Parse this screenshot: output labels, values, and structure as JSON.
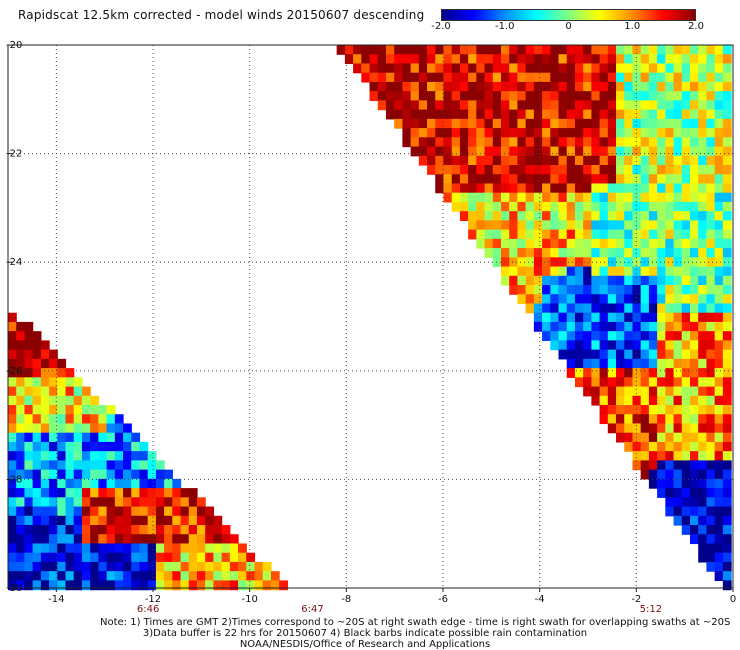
{
  "title": "Rapidscat 12.5km corrected - model winds 20150607 descending",
  "colorbar": {
    "ticks": [
      "-2.0",
      "-1.0",
      "0",
      "1.0",
      "2.0"
    ],
    "range": [
      -2.0,
      2.0
    ],
    "colors": [
      "#00008b",
      "#0000ff",
      "#0090ff",
      "#00ffff",
      "#7fff7f",
      "#ffff00",
      "#ff9000",
      "#ff0000",
      "#8b0000"
    ]
  },
  "chart_data": {
    "type": "heatmap",
    "title": "Rapidscat 12.5km corrected - model winds 20150607 descending",
    "xlabel": "",
    "ylabel": "",
    "xlim": [
      -15,
      0
    ],
    "ylim": [
      -30,
      -20
    ],
    "x_ticks": [
      "-14",
      "-12",
      "-10",
      "-8",
      "-6",
      "-4",
      "-2",
      "0"
    ],
    "y_ticks": [
      "-20",
      "-22",
      "-24",
      "-26",
      "-28",
      "-30"
    ],
    "grid": "dotted",
    "time_labels": [
      {
        "x": -12.1,
        "label": "6:46"
      },
      {
        "x": -8.7,
        "label": "6:47"
      },
      {
        "x": -1.7,
        "label": "5:12"
      }
    ],
    "value_range": [
      -2.0,
      2.0
    ],
    "swaths": [
      {
        "name": "",
        "corners": [
          [
            -8.2,
            -20.0
          ],
          [
            0,
            -20.0
          ],
          [
            0,
            -30.0
          ],
          [
            -0.2,
            -30.0
          ]
        ],
        "regions": [
          {
            "lon": [
              -8,
              -2.5
            ],
            "lat": [
              -22.8,
              -20
            ],
            "value": 1.7
          },
          {
            "lon": [
              -2.5,
              0
            ],
            "lat": [
              -22.5,
              -20
            ],
            "value": 0.2
          },
          {
            "lon": [
              -6,
              -3
            ],
            "lat": [
              -24,
              -22.8
            ],
            "value": 0.7
          },
          {
            "lon": [
              -3,
              0
            ],
            "lat": [
              -25,
              -22.5
            ],
            "value": 0.0
          },
          {
            "lon": [
              -4,
              -1.5
            ],
            "lat": [
              -26,
              -24.3
            ],
            "value": -1.2
          },
          {
            "lon": [
              -3.5,
              -1.5
            ],
            "lat": [
              -27.5,
              -26
            ],
            "value": 1.3
          },
          {
            "lon": [
              -1.5,
              0
            ],
            "lat": [
              -27.5,
              -25
            ],
            "value": 0.9
          },
          {
            "lon": [
              -1.5,
              0
            ],
            "lat": [
              -30,
              -27.8
            ],
            "value": -1.8
          }
        ]
      },
      {
        "name": "",
        "corners": [
          [
            -15,
            -24.8
          ],
          [
            -15,
            -30.0
          ],
          [
            -9.2,
            -30.0
          ]
        ],
        "regions": [
          {
            "lon": [
              -15,
              -13.5
            ],
            "lat": [
              -26.2,
              -24.8
            ],
            "value": 1.8
          },
          {
            "lon": [
              -15,
              -13
            ],
            "lat": [
              -27.2,
              -26.2
            ],
            "value": 0.6
          },
          {
            "lon": [
              -15,
              -11.5
            ],
            "lat": [
              -28.4,
              -27.2
            ],
            "value": -0.9
          },
          {
            "lon": [
              -13.5,
              -10
            ],
            "lat": [
              -29.2,
              -28.2
            ],
            "value": 1.6
          },
          {
            "lon": [
              -15,
              -12
            ],
            "lat": [
              -30,
              -29.2
            ],
            "value": -1.6
          },
          {
            "lon": [
              -12,
              -9.2
            ],
            "lat": [
              -30,
              -29.2
            ],
            "value": 0.8
          }
        ]
      }
    ]
  },
  "footer": {
    "line1": "Note: 1) Times are GMT 2)Times correspond to ~20S at right swath edge - time is right swath for overlapping swaths at ~20S",
    "line2": "3)Data buffer is 22 hrs for 20150607 4) Black barbs indicate possible rain contamination",
    "line3": "NOAA/NESDIS/Office of Research and Applications"
  }
}
